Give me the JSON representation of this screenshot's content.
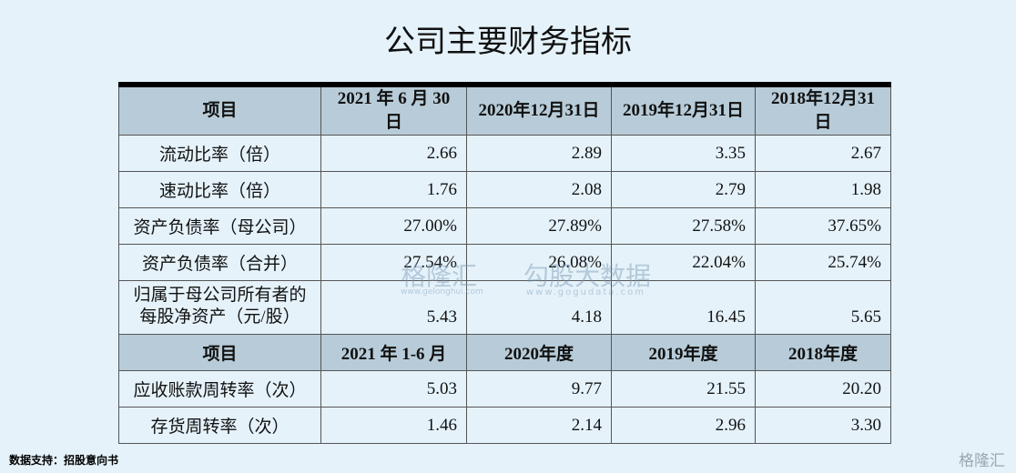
{
  "title": "公司主要财务指标",
  "table": {
    "sections": [
      {
        "header": [
          "项目",
          "2021 年 6 月 30 日",
          "2020年12月31日",
          "2019年12月31日",
          "2018年12月31日"
        ],
        "rows": [
          [
            "流动比率（倍）",
            "2.66",
            "2.89",
            "3.35",
            "2.67"
          ],
          [
            "速动比率（倍）",
            "1.76",
            "2.08",
            "2.79",
            "1.98"
          ],
          [
            "资产负债率（母公司）",
            "27.00%",
            "27.89%",
            "27.58%",
            "37.65%"
          ],
          [
            "资产负债率（合并）",
            "27.54%",
            "26.08%",
            "22.04%",
            "25.74%"
          ],
          [
            "归属于母公司所有者的每股净资产（元/股）",
            "5.43",
            "4.18",
            "16.45",
            "5.65"
          ]
        ]
      },
      {
        "header": [
          "项目",
          "2021 年 1-6 月",
          "2020年度",
          "2019年度",
          "2018年度"
        ],
        "rows": [
          [
            "应收账款周转率（次）",
            "5.03",
            "9.77",
            "21.55",
            "20.20"
          ],
          [
            "存货周转率（次）",
            "1.46",
            "2.14",
            "2.96",
            "3.30"
          ]
        ]
      }
    ]
  },
  "watermarks": {
    "left": "格隆汇",
    "left_url": "www.gelonghui.com",
    "right": "勾股大数据",
    "right_url": "www.gogudata.com"
  },
  "footer": {
    "source": "数据支持：招股意向书",
    "logo": "格隆汇"
  }
}
